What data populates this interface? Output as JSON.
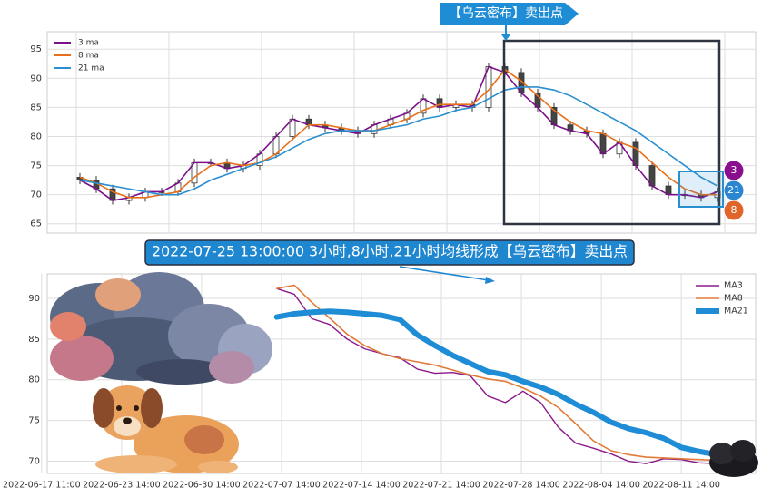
{
  "chart_data": [
    {
      "type": "candlestick",
      "annotation": "【乌云密布】卖出点",
      "ylim": [
        63.4,
        98
      ],
      "yticks": [
        65,
        70,
        75,
        80,
        85,
        90,
        95
      ],
      "legend": "upper left",
      "open": [
        73,
        72.5,
        71,
        69,
        69.5,
        70.5,
        70.5,
        72,
        75.5,
        75.5,
        74.5,
        75,
        77,
        80,
        83,
        82,
        81.5,
        81,
        80.5,
        82,
        83,
        84,
        86.5,
        85,
        85.5,
        85,
        92,
        91,
        87.5,
        85,
        82,
        81,
        80.5,
        77,
        79,
        75,
        71.5,
        70,
        70,
        69.5
      ],
      "high": [
        73.7,
        73.2,
        71.7,
        70.2,
        71.2,
        71.2,
        72.7,
        76.2,
        76.2,
        76.2,
        75.7,
        77.7,
        80.7,
        83.7,
        83.7,
        82.7,
        82.2,
        81.7,
        82.7,
        83.7,
        84.7,
        87.2,
        87.2,
        86.2,
        86.2,
        92.7,
        92.7,
        91.7,
        88.2,
        85.7,
        82.7,
        81.7,
        81.2,
        79.7,
        79.7,
        75.7,
        72.2,
        70.7,
        70.7,
        71.2
      ],
      "low": [
        71.8,
        70.3,
        68.3,
        68.3,
        68.8,
        69.8,
        69.8,
        71.3,
        74.8,
        73.8,
        73.8,
        74.3,
        76.3,
        79.3,
        81.3,
        80.8,
        80.3,
        79.8,
        79.8,
        81.3,
        82.3,
        83.3,
        84.3,
        84.3,
        84.3,
        84.3,
        90.3,
        86.8,
        84.3,
        81.3,
        80.3,
        79.8,
        76.3,
        76.3,
        74.3,
        70.8,
        69.3,
        69.3,
        68.8,
        68.8
      ],
      "close": [
        72.5,
        71,
        69,
        69.5,
        70.5,
        70.5,
        72,
        75.5,
        75.5,
        74.5,
        75,
        77,
        80,
        83,
        82,
        81.5,
        81,
        80.5,
        82,
        83,
        84,
        86.5,
        85,
        85.5,
        85,
        92,
        91,
        87.5,
        85,
        82,
        81,
        80.5,
        77,
        79,
        75,
        71.5,
        70,
        70,
        69.5,
        70.5
      ],
      "series": [
        {
          "name": "3 ma",
          "color": "#7b0e8a",
          "values": [
            72.5,
            71,
            69,
            69.5,
            70.5,
            70.5,
            72,
            75.5,
            75.5,
            74.5,
            75,
            77,
            80,
            83,
            82,
            81.5,
            81,
            80.5,
            82,
            83,
            84,
            86.5,
            85,
            85.5,
            85,
            92,
            91,
            87.5,
            85,
            82,
            81,
            80.5,
            77,
            79,
            75,
            71.5,
            70,
            70,
            69.5,
            70.5
          ]
        },
        {
          "name": "8 ma",
          "color": "#e8701a",
          "values": [
            73,
            72,
            70.5,
            69.5,
            69.5,
            70,
            70.5,
            73,
            75,
            75.5,
            75,
            75.5,
            77,
            79.5,
            82,
            82,
            81.5,
            81,
            81,
            82,
            83,
            84.5,
            85.5,
            85.5,
            85.5,
            88,
            91.5,
            89.5,
            87,
            84.5,
            82.5,
            81,
            80.5,
            79,
            78,
            75.5,
            73,
            71,
            70,
            70
          ]
        },
        {
          "name": "21 ma",
          "color": "#2a8fd0",
          "values": [
            72.5,
            72,
            71.5,
            71,
            70.5,
            70,
            70,
            71,
            72.5,
            73.5,
            74.5,
            75.5,
            76.5,
            78,
            79.5,
            80.5,
            81,
            81,
            81,
            81.5,
            82,
            83,
            83.5,
            84.5,
            85,
            86.5,
            88,
            88.5,
            88.5,
            88,
            87,
            85.5,
            84,
            82.5,
            81,
            79,
            77,
            75,
            73,
            71.5
          ]
        }
      ],
      "badges": [
        {
          "label": "3",
          "color": "#8a0f8f"
        },
        {
          "label": "21",
          "color": "#2a86d1"
        },
        {
          "label": "8",
          "color": "#e0652a"
        }
      ]
    },
    {
      "type": "line",
      "annotation": "2022-07-25 13:00:00 3小时,8小时,21小时均线形成【乌云密布】卖出点",
      "ylim": [
        68.5,
        93
      ],
      "yticks": [
        70,
        75,
        80,
        85,
        90
      ],
      "xlim": [
        0.07,
        8.93
      ],
      "xticks": [
        {
          "value": 0,
          "label": "2022-06-17 11:00"
        },
        {
          "value": 1,
          "label": "2022-06-23 14:00"
        },
        {
          "value": 2,
          "label": "2022-06-30 14:00"
        },
        {
          "value": 3,
          "label": "2022-07-07 14:00"
        },
        {
          "value": 4,
          "label": "2022-07-14 14:00"
        },
        {
          "value": 5,
          "label": "2022-07-21 14:00"
        },
        {
          "value": 6,
          "label": "2022-07-28 14:00"
        },
        {
          "value": 7,
          "label": "2022-08-04 14:00"
        },
        {
          "value": 8,
          "label": "2022-08-11 14:00"
        }
      ],
      "legend": "upper right",
      "x": [
        2.94,
        3.16,
        3.38,
        3.6,
        3.82,
        4.04,
        4.26,
        4.48,
        4.7,
        4.92,
        5.14,
        5.36,
        5.58,
        5.8,
        6.02,
        6.24,
        6.46,
        6.68,
        6.9,
        7.12,
        7.34,
        7.56,
        7.78,
        8.0,
        8.22,
        8.44
      ],
      "series": [
        {
          "name": "MA3",
          "color": "#8b1a8b",
          "values": [
            91.2,
            90.5,
            87.5,
            86.8,
            85.0,
            83.8,
            83.2,
            82.7,
            81.3,
            80.8,
            80.9,
            80.5,
            78.0,
            77.2,
            78.6,
            77.2,
            74.2,
            72.2,
            71.6,
            70.9,
            70.0,
            69.7,
            70.3,
            70.2,
            69.8,
            69.7
          ]
        },
        {
          "name": "MA8",
          "color": "#e07b39",
          "values": [
            91.2,
            91.6,
            89.5,
            87.6,
            85.6,
            84.2,
            83.2,
            82.6,
            82.2,
            81.8,
            81.2,
            80.6,
            80.1,
            79.8,
            79.0,
            78.0,
            76.6,
            74.6,
            72.5,
            71.3,
            70.8,
            70.5,
            70.4,
            70.3,
            70.2,
            70.1
          ]
        },
        {
          "name": "MA21",
          "color": "#1f8dd6",
          "values": [
            87.7,
            88.1,
            88.3,
            88.4,
            88.3,
            88.1,
            87.9,
            87.4,
            85.5,
            84.2,
            83.0,
            82.0,
            81.0,
            80.6,
            79.8,
            79.1,
            78.2,
            77.0,
            76.0,
            74.8,
            74.0,
            73.5,
            72.8,
            71.7,
            71.2,
            70.8
          ]
        }
      ]
    }
  ]
}
